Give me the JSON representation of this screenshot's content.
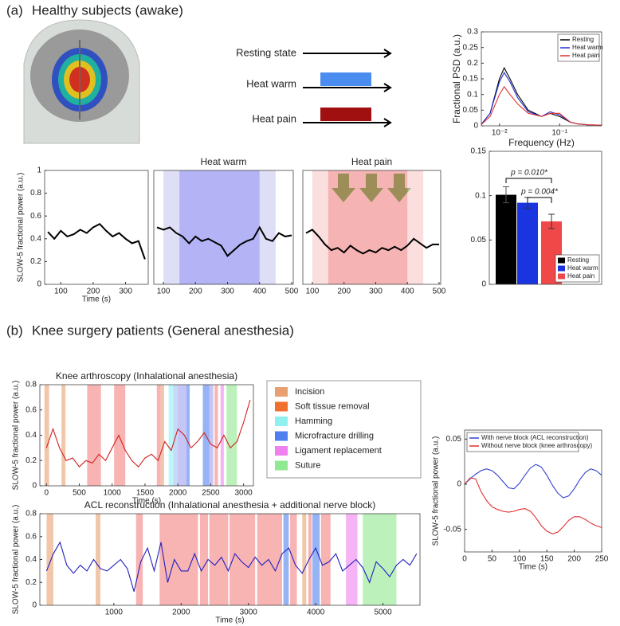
{
  "panels": [
    {
      "label": "(a)",
      "title": "Healthy subjects (awake)"
    },
    {
      "label": "(b)",
      "title": "Knee surgery patients (General anesthesia)"
    }
  ],
  "stimulus": {
    "labels": [
      "Resting state",
      "Heat warm",
      "Heat pain"
    ]
  },
  "procedure_legend": [
    {
      "name": "Incision",
      "color": "#e8a070"
    },
    {
      "name": "Soft tissue removal",
      "color": "#f07030"
    },
    {
      "name": "Hamming",
      "color": "#90f0f0"
    },
    {
      "name": "Microfracture drilling",
      "color": "#5080f0"
    },
    {
      "name": "Ligament replacement",
      "color": "#f080f0"
    },
    {
      "name": "Suture",
      "color": "#90e890"
    }
  ],
  "chart_data": [
    {
      "type": "line",
      "xlog": true,
      "xlabel": "Frequency (Hz)",
      "ylabel": "Fractional PSD (a.u.)",
      "legend": "upper right",
      "x": [
        0.005,
        0.007,
        0.01,
        0.012,
        0.015,
        0.02,
        0.03,
        0.05,
        0.07,
        0.1,
        0.15,
        0.2,
        0.3,
        0.5
      ],
      "series": [
        {
          "name": "Resting",
          "color": "#000000",
          "values": [
            0.005,
            0.04,
            0.15,
            0.185,
            0.15,
            0.1,
            0.05,
            0.03,
            0.04,
            0.03,
            0.012,
            0.006,
            0.003,
            0.002
          ]
        },
        {
          "name": "Heat warm",
          "color": "#2030d0",
          "values": [
            0.005,
            0.04,
            0.14,
            0.17,
            0.14,
            0.09,
            0.045,
            0.03,
            0.045,
            0.035,
            0.012,
            0.006,
            0.003,
            0.002
          ]
        },
        {
          "name": "Heat pain",
          "color": "#e03030",
          "values": [
            0.004,
            0.03,
            0.1,
            0.125,
            0.1,
            0.07,
            0.04,
            0.03,
            0.04,
            0.04,
            0.012,
            0.006,
            0.003,
            0.002
          ]
        }
      ],
      "xlim": [
        0.005,
        0.5
      ],
      "xticks": [
        {
          "value": 0.01,
          "label": "10⁻²"
        },
        {
          "value": 0.1,
          "label": "10⁻¹"
        }
      ],
      "ylim": [
        0,
        0.3
      ],
      "yticks": [
        0,
        0.05,
        0.1,
        0.15,
        0.2,
        0.25,
        0.3
      ]
    },
    {
      "type": "line",
      "xlabel": "Time (s)",
      "ylabel": "SLOW-5 fractional power (a.u.)",
      "x": [
        60,
        80,
        100,
        120,
        140,
        160,
        180,
        200,
        220,
        240,
        260,
        280,
        300,
        320,
        340,
        360
      ],
      "series": [
        {
          "color": "#000000",
          "values": [
            0.46,
            0.4,
            0.47,
            0.42,
            0.44,
            0.48,
            0.45,
            0.5,
            0.53,
            0.47,
            0.42,
            0.45,
            0.4,
            0.36,
            0.38,
            0.22
          ]
        }
      ],
      "xlim": [
        50,
        370
      ],
      "xticks": [
        100,
        200,
        300
      ],
      "ylim": [
        0,
        1
      ],
      "yticks": [
        0,
        0.2,
        0.4,
        0.6,
        0.8,
        1
      ]
    },
    {
      "type": "line",
      "title": "Heat warm",
      "x": [
        80,
        100,
        120,
        140,
        160,
        180,
        200,
        220,
        240,
        260,
        280,
        300,
        320,
        340,
        360,
        380,
        400,
        420,
        440,
        460,
        480,
        500
      ],
      "series": [
        {
          "color": "#000000",
          "values": [
            0.5,
            0.48,
            0.5,
            0.45,
            0.42,
            0.36,
            0.42,
            0.38,
            0.4,
            0.37,
            0.34,
            0.25,
            0.3,
            0.35,
            0.38,
            0.4,
            0.5,
            0.4,
            0.38,
            0.45,
            0.42,
            0.43
          ]
        }
      ],
      "spans": [
        {
          "start": 100,
          "end": 150,
          "color": "#c8c8f0"
        },
        {
          "start": 150,
          "end": 400,
          "color": "#8080f0"
        },
        {
          "start": 400,
          "end": 450,
          "color": "#c8c8f0"
        }
      ],
      "xlim": [
        70,
        505
      ],
      "xticks": [
        100,
        200,
        300,
        400,
        500
      ],
      "ylim": [
        0,
        1
      ]
    },
    {
      "type": "line",
      "title": "Heat pain",
      "x": [
        80,
        100,
        120,
        140,
        160,
        180,
        200,
        220,
        240,
        260,
        280,
        300,
        320,
        340,
        360,
        380,
        400,
        420,
        440,
        460,
        480,
        500
      ],
      "series": [
        {
          "color": "#000000",
          "values": [
            0.45,
            0.48,
            0.42,
            0.35,
            0.3,
            0.32,
            0.28,
            0.34,
            0.3,
            0.27,
            0.3,
            0.28,
            0.32,
            0.3,
            0.33,
            0.3,
            0.34,
            0.4,
            0.36,
            0.32,
            0.35,
            0.35
          ]
        }
      ],
      "spans": [
        {
          "start": 100,
          "end": 150,
          "color": "#f8c8c8"
        },
        {
          "start": 150,
          "end": 400,
          "color": "#f08080"
        },
        {
          "start": 400,
          "end": 450,
          "color": "#f8c8c8"
        }
      ],
      "xlim": [
        70,
        505
      ],
      "xticks": [
        100,
        200,
        300,
        400,
        500
      ],
      "ylim": [
        0,
        1
      ]
    },
    {
      "type": "bar",
      "legend": "lower right",
      "series": [
        {
          "name": "Resting",
          "color": "#000000",
          "values": [
            0.101
          ],
          "errors": [
            0.009
          ]
        },
        {
          "name": "Heat warm",
          "color": "#1a35e0",
          "values": [
            0.092
          ],
          "errors": [
            0.006
          ]
        },
        {
          "name": "Heat pain",
          "color": "#f04848",
          "values": [
            0.071
          ],
          "errors": [
            0.008
          ]
        }
      ],
      "annotations": [
        "p = 0.010*",
        "p = 0.004*"
      ],
      "ylim": [
        0,
        0.15
      ],
      "yticks": [
        0,
        0.05,
        0.1,
        0.15
      ]
    },
    {
      "type": "line",
      "title": "Knee arthroscopy (Inhalational anesthesia)",
      "xlabel": "Time (s)",
      "ylabel": "SLOW-5 fractional power (a.u.)",
      "x": [
        0,
        100,
        200,
        300,
        400,
        500,
        600,
        700,
        800,
        900,
        1000,
        1100,
        1200,
        1300,
        1400,
        1500,
        1600,
        1700,
        1800,
        1900,
        2000,
        2100,
        2200,
        2300,
        2400,
        2500,
        2600,
        2700,
        2800,
        2900,
        3000,
        3100
      ],
      "series": [
        {
          "color": "#d02020",
          "values": [
            0.3,
            0.45,
            0.3,
            0.2,
            0.22,
            0.15,
            0.2,
            0.18,
            0.25,
            0.2,
            0.3,
            0.4,
            0.28,
            0.2,
            0.15,
            0.22,
            0.25,
            0.2,
            0.35,
            0.28,
            0.45,
            0.4,
            0.3,
            0.35,
            0.42,
            0.33,
            0.3,
            0.4,
            0.3,
            0.35,
            0.5,
            0.68
          ]
        }
      ],
      "spans": [
        {
          "start": -30,
          "end": 40,
          "color": "#e8a070"
        },
        {
          "start": 230,
          "end": 290,
          "color": "#e8a070"
        },
        {
          "start": 620,
          "end": 830,
          "color": "#f48080"
        },
        {
          "start": 1030,
          "end": 1200,
          "color": "#f48080"
        },
        {
          "start": 1680,
          "end": 1740,
          "color": "#f48080"
        },
        {
          "start": 1740,
          "end": 1790,
          "color": "#e8a070"
        },
        {
          "start": 1860,
          "end": 1930,
          "color": "#90f0f0"
        },
        {
          "start": 1930,
          "end": 2000,
          "color": "#a0c0f0"
        },
        {
          "start": 2000,
          "end": 2130,
          "color": "#a0a0f0"
        },
        {
          "start": 2130,
          "end": 2180,
          "color": "#5080f0"
        },
        {
          "start": 2380,
          "end": 2480,
          "color": "#5080f0"
        },
        {
          "start": 2480,
          "end": 2540,
          "color": "#a0a0f0"
        },
        {
          "start": 2560,
          "end": 2610,
          "color": "#f48080"
        },
        {
          "start": 2650,
          "end": 2700,
          "color": "#f080f0"
        },
        {
          "start": 2740,
          "end": 2900,
          "color": "#90e890"
        }
      ],
      "xlim": [
        -100,
        3150
      ],
      "xticks": [
        0,
        500,
        1000,
        1500,
        2000,
        2500,
        3000
      ],
      "ylim": [
        0,
        0.8
      ],
      "yticks": [
        0,
        0.2,
        0.4,
        0.6,
        0.8
      ]
    },
    {
      "type": "line",
      "title": "ACL reconstruction (Inhalational anesthesia + additional nerve block)",
      "xlabel": "Time (s)",
      "ylabel": "SLOW-5 fractional power (a.u.)",
      "x": [
        0,
        100,
        200,
        300,
        400,
        500,
        600,
        700,
        800,
        900,
        1000,
        1100,
        1200,
        1300,
        1400,
        1500,
        1600,
        1700,
        1800,
        1900,
        2000,
        2100,
        2200,
        2300,
        2400,
        2500,
        2600,
        2700,
        2800,
        2900,
        3000,
        3100,
        3200,
        3300,
        3400,
        3500,
        3600,
        3700,
        3800,
        3900,
        4000,
        4100,
        4200,
        4300,
        4400,
        4500,
        4600,
        4700,
        4800,
        4900,
        5000,
        5100,
        5200,
        5300,
        5400,
        5500
      ],
      "series": [
        {
          "color": "#2020c0",
          "values": [
            0.3,
            0.45,
            0.55,
            0.35,
            0.28,
            0.35,
            0.3,
            0.4,
            0.32,
            0.3,
            0.35,
            0.4,
            0.32,
            0.12,
            0.38,
            0.5,
            0.3,
            0.55,
            0.2,
            0.4,
            0.3,
            0.3,
            0.45,
            0.3,
            0.4,
            0.35,
            0.42,
            0.3,
            0.45,
            0.38,
            0.33,
            0.42,
            0.35,
            0.4,
            0.3,
            0.45,
            0.5,
            0.35,
            0.28,
            0.4,
            0.5,
            0.35,
            0.38,
            0.45,
            0.3,
            0.35,
            0.4,
            0.33,
            0.2,
            0.38,
            0.32,
            0.25,
            0.35,
            0.4,
            0.35,
            0.45
          ]
        }
      ],
      "spans": [
        {
          "start": 0,
          "end": 100,
          "color": "#e8a070"
        },
        {
          "start": 730,
          "end": 800,
          "color": "#e8a070"
        },
        {
          "start": 1330,
          "end": 1430,
          "color": "#f48080"
        },
        {
          "start": 1680,
          "end": 2250,
          "color": "#f48080"
        },
        {
          "start": 2280,
          "end": 2400,
          "color": "#f48080"
        },
        {
          "start": 2420,
          "end": 2700,
          "color": "#f48080"
        },
        {
          "start": 2720,
          "end": 3100,
          "color": "#f48080"
        },
        {
          "start": 3130,
          "end": 3500,
          "color": "#f48080"
        },
        {
          "start": 3520,
          "end": 3600,
          "color": "#5080f0"
        },
        {
          "start": 3620,
          "end": 3720,
          "color": "#f48080"
        },
        {
          "start": 3800,
          "end": 3860,
          "color": "#e8a070"
        },
        {
          "start": 3890,
          "end": 3940,
          "color": "#f48080"
        },
        {
          "start": 3950,
          "end": 4060,
          "color": "#5080f0"
        },
        {
          "start": 4080,
          "end": 4220,
          "color": "#f48080"
        },
        {
          "start": 4450,
          "end": 4620,
          "color": "#f080f0"
        },
        {
          "start": 4700,
          "end": 4920,
          "color": "#90e890"
        },
        {
          "start": 4920,
          "end": 5200,
          "color": "#90e890"
        }
      ],
      "xlim": [
        -100,
        5550
      ],
      "xticks": [
        1000,
        2000,
        3000,
        4000,
        5000
      ],
      "ylim": [
        0,
        0.8
      ],
      "yticks": [
        0,
        0.2,
        0.4,
        0.6,
        0.8
      ]
    },
    {
      "type": "line",
      "xlabel": "Time (s)",
      "ylabel": "SLOW-5 fractional power (a.u.)",
      "legend": "upper left",
      "x": [
        0,
        10,
        20,
        30,
        40,
        50,
        60,
        70,
        80,
        90,
        100,
        110,
        120,
        130,
        140,
        150,
        160,
        170,
        180,
        190,
        200,
        210,
        220,
        230,
        240,
        250
      ],
      "series": [
        {
          "name": "With nerve block (ACL reconstruction)",
          "color": "#3040d0",
          "values": [
            0,
            0.006,
            0.011,
            0.015,
            0.017,
            0.015,
            0.01,
            0.003,
            -0.004,
            -0.005,
            0.001,
            0.01,
            0.018,
            0.022,
            0.019,
            0.01,
            -0.001,
            -0.01,
            -0.015,
            -0.013,
            -0.005,
            0.005,
            0.013,
            0.017,
            0.015,
            0.01
          ]
        },
        {
          "name": "Without nerve block (knee arthroscopy)",
          "color": "#e03030",
          "values": [
            0,
            0.007,
            0.006,
            -0.008,
            -0.018,
            -0.025,
            -0.028,
            -0.03,
            -0.031,
            -0.03,
            -0.028,
            -0.027,
            -0.03,
            -0.037,
            -0.046,
            -0.052,
            -0.055,
            -0.053,
            -0.047,
            -0.04,
            -0.036,
            -0.036,
            -0.039,
            -0.043,
            -0.046,
            -0.048
          ]
        }
      ],
      "xlim": [
        0,
        250
      ],
      "xticks": [
        0,
        50,
        100,
        150,
        200,
        250
      ],
      "ylim": [
        -0.075,
        0.06
      ],
      "yticks": [
        -0.05,
        0,
        0.05
      ]
    }
  ]
}
